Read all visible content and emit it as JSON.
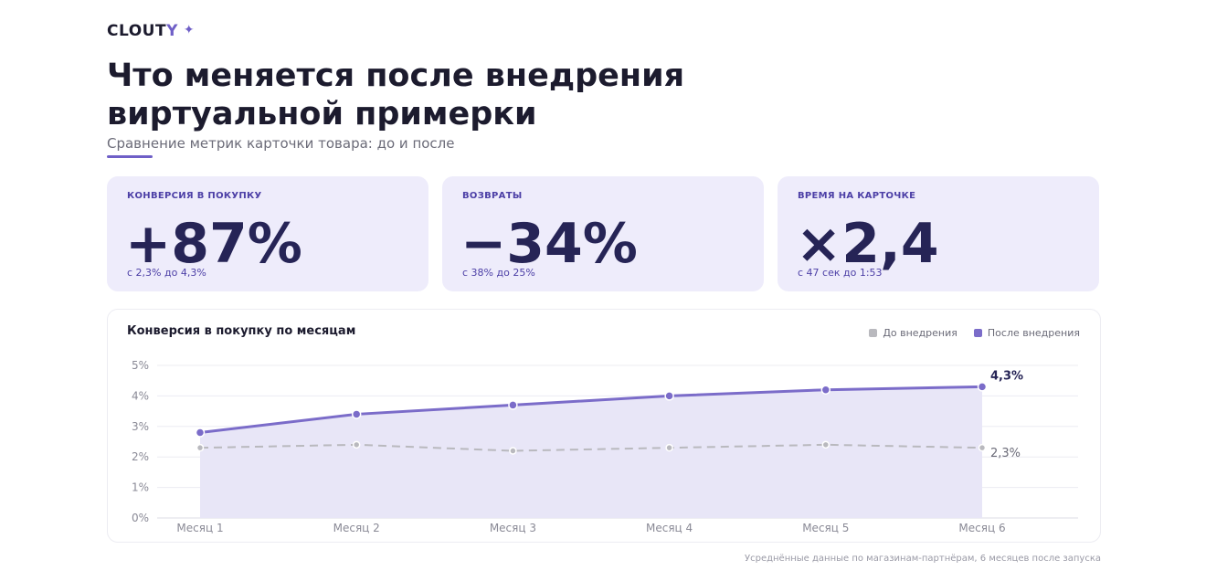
{
  "brand": {
    "name_main": "CLOUT",
    "name_accent": "Y",
    "spark": "✦"
  },
  "header": {
    "title": "Что меняется после внедрения виртуальной примерки",
    "subtitle": "Сравнение метрик карточки товара: до и после"
  },
  "cards": [
    {
      "label": "КОНВЕРСИЯ В ПОКУПКУ",
      "value": "+87%",
      "note": "с 2,3% до 4,3%"
    },
    {
      "label": "ВОЗВРАТЫ",
      "value": "−34%",
      "note": "с 38% до 25%"
    },
    {
      "label": "ВРЕМЯ НА КАРТОЧКЕ",
      "value": "×2,4",
      "note": "с 47 сек до 1:53"
    }
  ],
  "colors": {
    "accent": "#7b6cc9",
    "before": "#b9b9be",
    "card_bg": "#eeecfb",
    "dark": "#262456"
  },
  "chart_data": {
    "type": "line",
    "title": "Конверсия в покупку по месяцам",
    "categories": [
      "Месяц 1",
      "Месяц 2",
      "Месяц 3",
      "Месяц 4",
      "Месяц 5",
      "Месяц 6"
    ],
    "series": [
      {
        "name": "До внедрения",
        "values": [
          2.3,
          2.4,
          2.2,
          2.3,
          2.4,
          2.3
        ],
        "style": "dashed",
        "end_label": "2,3%"
      },
      {
        "name": "После внедрения",
        "values": [
          2.8,
          3.4,
          3.7,
          4.0,
          4.2,
          4.3
        ],
        "style": "solid-area",
        "end_label": "4,3%"
      }
    ],
    "yticks": [
      "0%",
      "1%",
      "2%",
      "3%",
      "4%",
      "5%"
    ],
    "ylim": [
      0,
      5
    ],
    "grid": true,
    "legend": "top-right"
  },
  "footer": {
    "note": "Усреднённые данные по магазинам-партнёрам, 6 месяцев после запуска"
  }
}
